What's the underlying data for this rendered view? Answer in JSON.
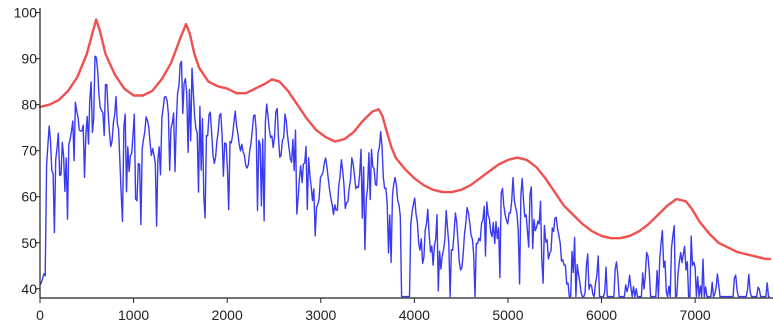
{
  "chart_data": {
    "type": "line",
    "title": "",
    "xlabel": "",
    "ylabel": "",
    "xlim": [
      0,
      7800
    ],
    "ylim": [
      38,
      101
    ],
    "grid": false,
    "x_ticks": [
      0,
      1000,
      2000,
      3000,
      4000,
      5000,
      6000,
      7000
    ],
    "y_ticks": [
      40,
      50,
      60,
      70,
      80,
      90,
      100
    ],
    "colors": {
      "envelope": "#f05050",
      "spectrum": "#3a3af0",
      "axis": "#222222"
    },
    "series": [
      {
        "key": "envelope",
        "x": [
          0,
          100,
          200,
          300,
          400,
          500,
          560,
          600,
          640,
          700,
          800,
          900,
          1000,
          1100,
          1200,
          1300,
          1400,
          1500,
          1560,
          1600,
          1650,
          1700,
          1800,
          1900,
          2000,
          2100,
          2200,
          2300,
          2400,
          2480,
          2560,
          2650,
          2750,
          2850,
          2950,
          3050,
          3150,
          3250,
          3350,
          3450,
          3550,
          3620,
          3660,
          3700,
          3750,
          3800,
          3900,
          4000,
          4100,
          4200,
          4300,
          4400,
          4500,
          4600,
          4700,
          4800,
          4900,
          5000,
          5100,
          5200,
          5300,
          5400,
          5500,
          5600,
          5700,
          5800,
          5900,
          6000,
          6100,
          6200,
          6300,
          6400,
          6500,
          6600,
          6700,
          6800,
          6900,
          6960,
          7050,
          7150,
          7250,
          7350,
          7450,
          7550,
          7650,
          7750,
          7800
        ],
        "y": [
          79.5,
          80,
          81,
          83,
          86,
          91,
          95.5,
          98.5,
          96,
          91,
          86.5,
          83.5,
          82,
          82,
          83,
          85.5,
          89,
          94.5,
          97.5,
          95.5,
          91,
          88,
          85,
          84,
          83.5,
          82.5,
          82.5,
          83.5,
          84.5,
          85.5,
          85,
          83,
          80,
          77,
          74.5,
          73,
          72,
          72.5,
          74,
          76.5,
          78.5,
          79,
          77.5,
          74.5,
          71,
          68.5,
          66,
          64,
          62.5,
          61.5,
          61,
          61,
          61.5,
          62.5,
          64,
          65.5,
          67,
          68,
          68.5,
          68,
          66.5,
          64,
          61,
          58,
          56,
          54,
          52.5,
          51.5,
          51,
          51,
          51.5,
          52.5,
          54,
          56,
          58,
          59.5,
          59,
          57.5,
          54.5,
          52,
          50,
          49,
          48,
          47.5,
          47,
          46.5,
          46.5
        ]
      }
    ]
  }
}
